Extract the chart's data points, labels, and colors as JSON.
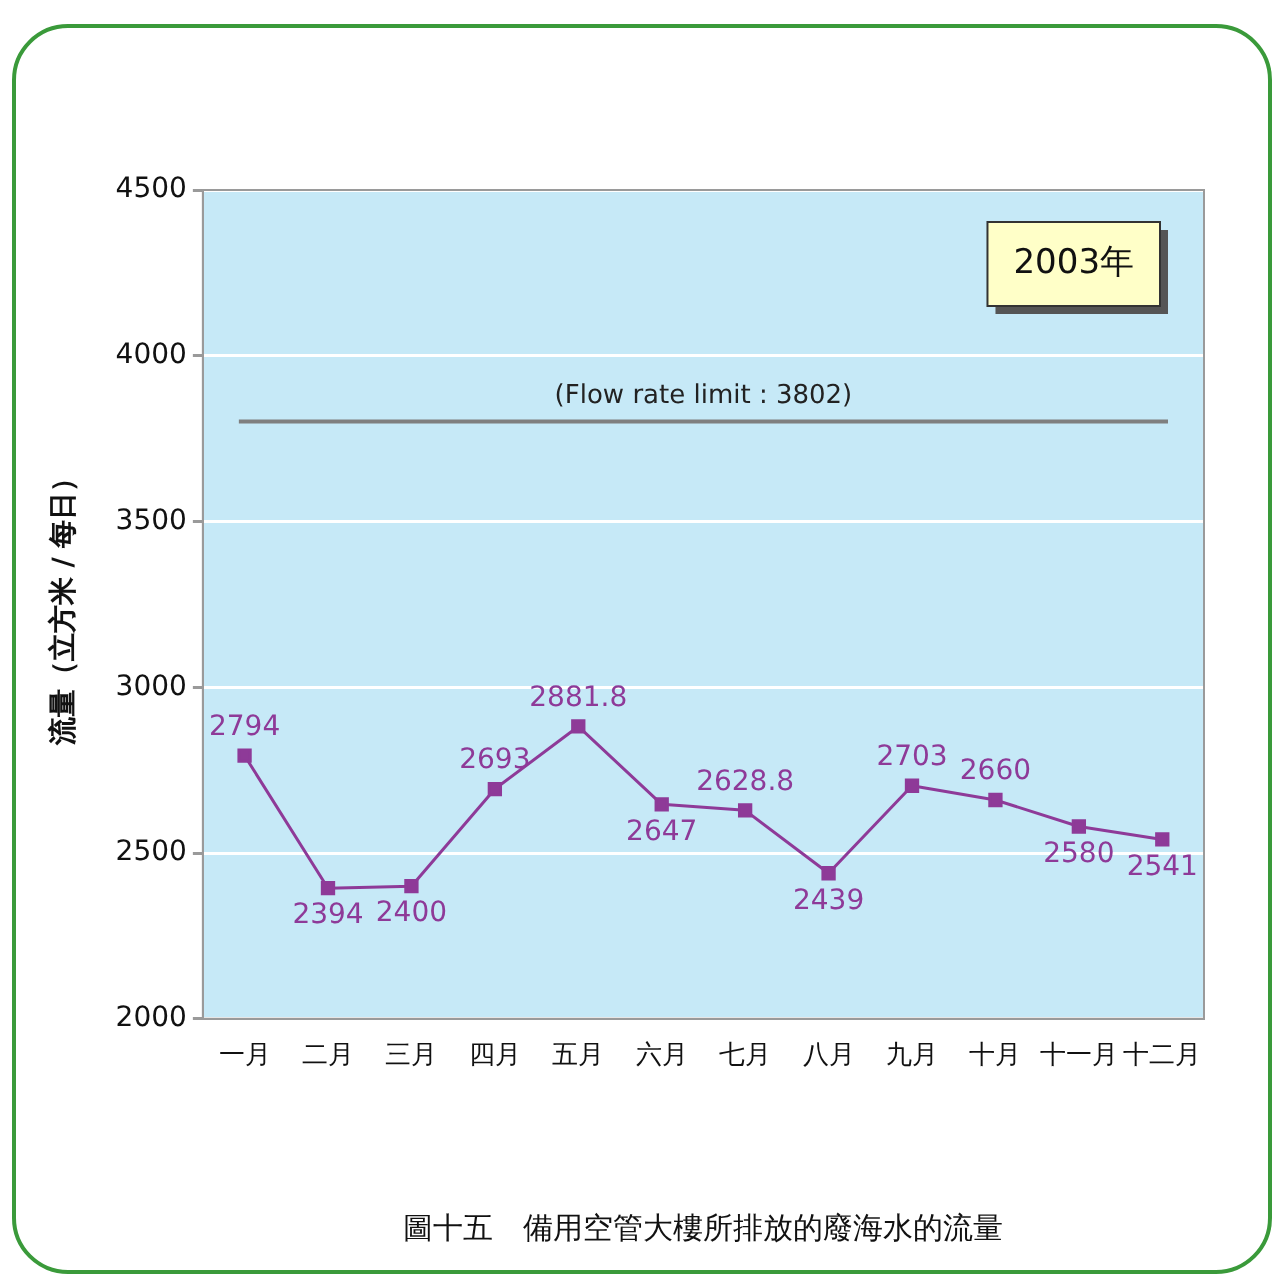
{
  "chart_data": {
    "type": "line",
    "ylabel": "流量（立方米 / 每日）",
    "categories": [
      "一月",
      "二月",
      "三月",
      "四月",
      "五月",
      "六月",
      "七月",
      "八月",
      "九月",
      "十月",
      "十一月",
      "十二月"
    ],
    "series": [
      {
        "color": "#8e3a98",
        "values": [
          2794,
          2394,
          2400,
          2693,
          2881.8,
          2647,
          2628.8,
          2439,
          2703,
          2660,
          2580,
          2541
        ]
      }
    ],
    "ylim": [
      2000,
      4500
    ],
    "yticks": [
      2000,
      2500,
      3000,
      3500,
      4000,
      4500
    ],
    "grid": "y",
    "legend": false,
    "marker": "square",
    "line_style": "solid",
    "data_labels": true,
    "ref_lines": [
      {
        "axis": "y",
        "value": 3802,
        "label": "(Flow rate limit : 3802)",
        "color": "#7f7f7f"
      }
    ],
    "annotations": [
      "2003年",
      "圖十五　備用空管大樓所排放的廢海水的流量"
    ]
  }
}
